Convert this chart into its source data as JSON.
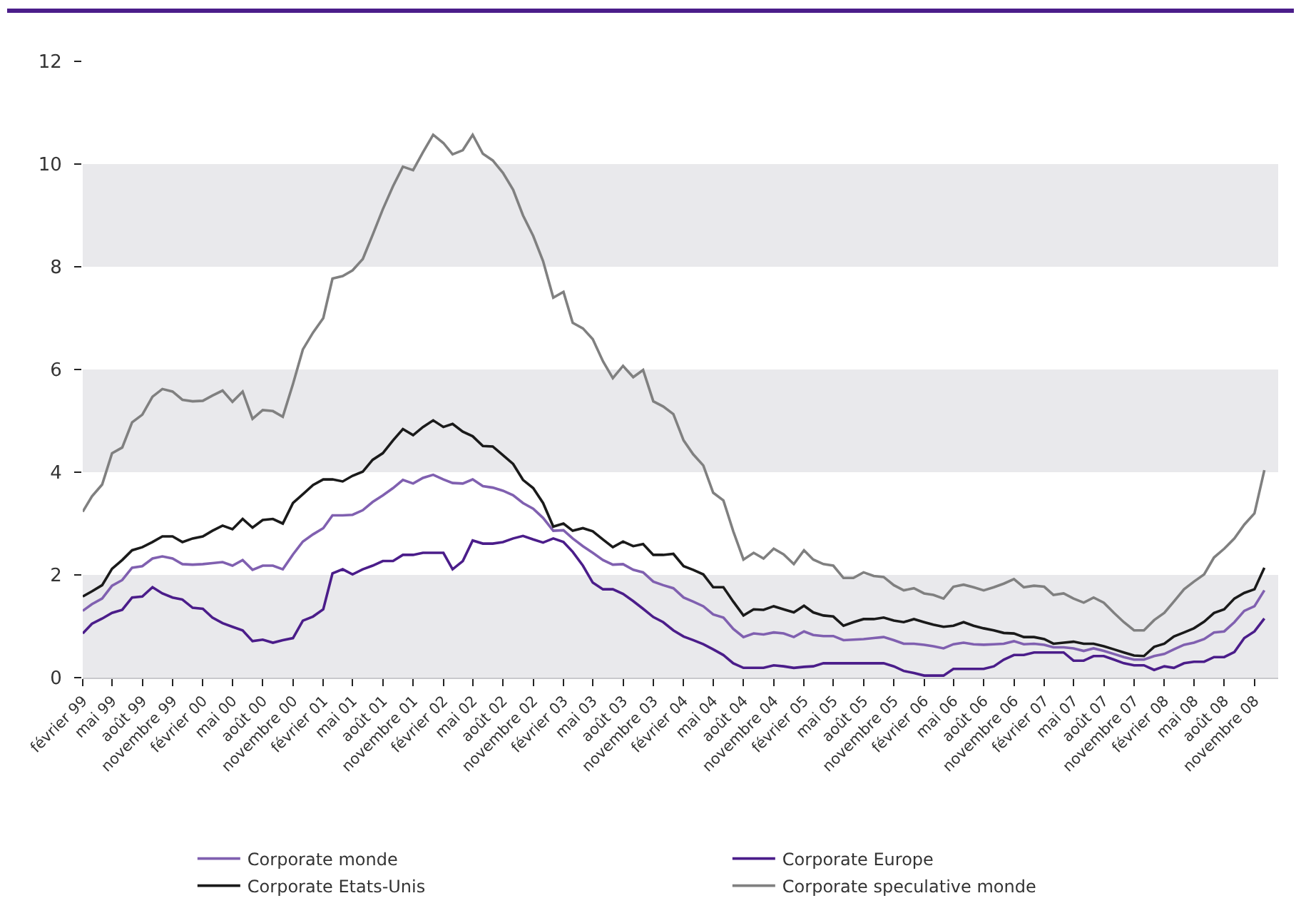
{
  "chart_data": {
    "type": "line",
    "legend": "bottom",
    "x": [
      "1999-02",
      "1999-03",
      "1999-04",
      "1999-05",
      "1999-06",
      "1999-07",
      "1999-08",
      "1999-09",
      "1999-10",
      "1999-11",
      "1999-12",
      "2000-01",
      "2000-02",
      "2000-03",
      "2000-04",
      "2000-05",
      "2000-06",
      "2000-07",
      "2000-08",
      "2000-09",
      "2000-10",
      "2000-11",
      "2000-12",
      "2001-01",
      "2001-02",
      "2001-03",
      "2001-04",
      "2001-05",
      "2001-06",
      "2001-07",
      "2001-08",
      "2001-09",
      "2001-10",
      "2001-11",
      "2001-12",
      "2002-01",
      "2002-02",
      "2002-03",
      "2002-04",
      "2002-05",
      "2002-06",
      "2002-07",
      "2002-08",
      "2002-09",
      "2002-10",
      "2002-11",
      "2002-12",
      "2003-01",
      "2003-02",
      "2003-03",
      "2003-04",
      "2003-05",
      "2003-06",
      "2003-07",
      "2003-08",
      "2003-09",
      "2003-10",
      "2003-11",
      "2003-12",
      "2004-01",
      "2004-02",
      "2004-03",
      "2004-04",
      "2004-05",
      "2004-06",
      "2004-07",
      "2004-08",
      "2004-09",
      "2004-10",
      "2004-11",
      "2004-12",
      "2005-01",
      "2005-02",
      "2005-03",
      "2005-04",
      "2005-05",
      "2005-06",
      "2005-07",
      "2005-08",
      "2005-09",
      "2005-10",
      "2005-11",
      "2005-12",
      "2006-01",
      "2006-02",
      "2006-03",
      "2006-04",
      "2006-05",
      "2006-06",
      "2006-07",
      "2006-08",
      "2006-09",
      "2006-10",
      "2006-11",
      "2006-12",
      "2007-01",
      "2007-02",
      "2007-03",
      "2007-04",
      "2007-05",
      "2007-06",
      "2007-07",
      "2007-08",
      "2007-09",
      "2007-10",
      "2007-11",
      "2007-12",
      "2008-01",
      "2008-02",
      "2008-03",
      "2008-04",
      "2008-05",
      "2008-06",
      "2008-07",
      "2008-08",
      "2008-09",
      "2008-10",
      "2008-11",
      "2008-12"
    ],
    "series": [
      {
        "name": "Corporate monde",
        "color": "#8060b0",
        "values": [
          1.3,
          1.43,
          1.54,
          1.79,
          1.9,
          2.14,
          2.17,
          2.32,
          2.36,
          2.32,
          2.21,
          2.2,
          2.21,
          2.23,
          2.25,
          2.18,
          2.29,
          2.1,
          2.18,
          2.18,
          2.11,
          2.4,
          2.65,
          2.79,
          2.91,
          3.16,
          3.16,
          3.17,
          3.26,
          3.42,
          3.55,
          3.69,
          3.85,
          3.78,
          3.89,
          3.95,
          3.86,
          3.79,
          3.78,
          3.86,
          3.73,
          3.7,
          3.64,
          3.55,
          3.4,
          3.29,
          3.11,
          2.86,
          2.87,
          2.71,
          2.56,
          2.43,
          2.29,
          2.2,
          2.21,
          2.1,
          2.05,
          1.87,
          1.8,
          1.74,
          1.56,
          1.48,
          1.39,
          1.23,
          1.17,
          0.95,
          0.79,
          0.86,
          0.84,
          0.88,
          0.86,
          0.79,
          0.9,
          0.83,
          0.81,
          0.81,
          0.73,
          0.74,
          0.75,
          0.77,
          0.79,
          0.73,
          0.66,
          0.66,
          0.64,
          0.61,
          0.57,
          0.65,
          0.68,
          0.65,
          0.64,
          0.65,
          0.66,
          0.71,
          0.65,
          0.66,
          0.64,
          0.59,
          0.59,
          0.57,
          0.52,
          0.57,
          0.52,
          0.46,
          0.4,
          0.35,
          0.35,
          0.42,
          0.46,
          0.55,
          0.64,
          0.68,
          0.75,
          0.88,
          0.9,
          1.08,
          1.3,
          1.39,
          1.7
        ]
      },
      {
        "name": "Corporate Europe",
        "color": "#4b1d8a",
        "values": [
          0.86,
          1.05,
          1.15,
          1.26,
          1.32,
          1.56,
          1.58,
          1.76,
          1.64,
          1.56,
          1.52,
          1.36,
          1.34,
          1.17,
          1.06,
          0.99,
          0.92,
          0.71,
          0.74,
          0.68,
          0.73,
          0.77,
          1.11,
          1.19,
          1.33,
          2.03,
          2.11,
          2.01,
          2.11,
          2.18,
          2.27,
          2.27,
          2.39,
          2.39,
          2.43,
          2.43,
          2.43,
          2.11,
          2.27,
          2.67,
          2.61,
          2.61,
          2.64,
          2.71,
          2.76,
          2.69,
          2.63,
          2.71,
          2.64,
          2.45,
          2.18,
          1.85,
          1.72,
          1.72,
          1.63,
          1.49,
          1.34,
          1.18,
          1.08,
          0.92,
          0.8,
          0.73,
          0.65,
          0.55,
          0.44,
          0.28,
          0.19,
          0.19,
          0.19,
          0.24,
          0.22,
          0.19,
          0.21,
          0.22,
          0.28,
          0.28,
          0.28,
          0.28,
          0.28,
          0.28,
          0.28,
          0.22,
          0.13,
          0.09,
          0.04,
          0.04,
          0.04,
          0.17,
          0.17,
          0.17,
          0.17,
          0.22,
          0.35,
          0.44,
          0.44,
          0.49,
          0.49,
          0.49,
          0.49,
          0.33,
          0.33,
          0.42,
          0.42,
          0.35,
          0.28,
          0.24,
          0.24,
          0.15,
          0.22,
          0.19,
          0.28,
          0.31,
          0.31,
          0.4,
          0.4,
          0.5,
          0.77,
          0.9,
          1.15
        ]
      },
      {
        "name": "Corporate Etats-Unis",
        "color": "#1a1a1a",
        "values": [
          1.58,
          1.68,
          1.8,
          2.12,
          2.29,
          2.48,
          2.54,
          2.64,
          2.75,
          2.75,
          2.64,
          2.71,
          2.75,
          2.86,
          2.96,
          2.89,
          3.09,
          2.92,
          3.07,
          3.09,
          3.0,
          3.4,
          3.57,
          3.75,
          3.86,
          3.86,
          3.82,
          3.93,
          4.01,
          4.24,
          4.37,
          4.62,
          4.84,
          4.72,
          4.88,
          5.01,
          4.88,
          4.94,
          4.79,
          4.7,
          4.51,
          4.5,
          4.33,
          4.16,
          3.85,
          3.69,
          3.4,
          2.94,
          3.0,
          2.86,
          2.91,
          2.85,
          2.69,
          2.54,
          2.65,
          2.56,
          2.6,
          2.39,
          2.39,
          2.41,
          2.17,
          2.1,
          2.01,
          1.76,
          1.76,
          1.48,
          1.21,
          1.33,
          1.32,
          1.39,
          1.33,
          1.27,
          1.4,
          1.27,
          1.21,
          1.19,
          1.01,
          1.08,
          1.14,
          1.14,
          1.17,
          1.11,
          1.08,
          1.14,
          1.08,
          1.03,
          0.99,
          1.01,
          1.08,
          1.01,
          0.96,
          0.92,
          0.87,
          0.86,
          0.79,
          0.79,
          0.75,
          0.66,
          0.68,
          0.7,
          0.66,
          0.66,
          0.61,
          0.55,
          0.49,
          0.43,
          0.42,
          0.6,
          0.66,
          0.8,
          0.88,
          0.96,
          1.09,
          1.26,
          1.33,
          1.54,
          1.65,
          1.72,
          2.14
        ]
      },
      {
        "name": "Corporate speculative monde",
        "color": "#808080",
        "values": [
          3.23,
          3.53,
          3.76,
          4.37,
          4.48,
          4.97,
          5.12,
          5.47,
          5.62,
          5.57,
          5.41,
          5.38,
          5.39,
          5.49,
          5.59,
          5.37,
          5.57,
          5.04,
          5.21,
          5.19,
          5.08,
          5.72,
          6.39,
          6.72,
          7.0,
          7.77,
          7.82,
          7.93,
          8.15,
          8.62,
          9.12,
          9.57,
          9.95,
          9.88,
          10.23,
          10.57,
          10.41,
          10.19,
          10.27,
          10.57,
          10.2,
          10.07,
          9.83,
          9.5,
          9.0,
          8.6,
          8.11,
          7.4,
          7.51,
          6.91,
          6.8,
          6.59,
          6.16,
          5.83,
          6.07,
          5.85,
          5.99,
          5.38,
          5.28,
          5.13,
          4.62,
          4.35,
          4.13,
          3.6,
          3.45,
          2.85,
          2.3,
          2.43,
          2.32,
          2.51,
          2.4,
          2.21,
          2.48,
          2.3,
          2.21,
          2.18,
          1.94,
          1.94,
          2.05,
          1.98,
          1.96,
          1.8,
          1.7,
          1.74,
          1.64,
          1.61,
          1.54,
          1.77,
          1.81,
          1.76,
          1.7,
          1.76,
          1.83,
          1.92,
          1.76,
          1.79,
          1.77,
          1.61,
          1.64,
          1.54,
          1.46,
          1.56,
          1.46,
          1.26,
          1.08,
          0.92,
          0.92,
          1.12,
          1.26,
          1.48,
          1.72,
          1.87,
          2.01,
          2.34,
          2.51,
          2.71,
          2.98,
          3.2,
          4.04
        ]
      }
    ],
    "xlim": [
      "1999-02",
      "2009-01-12"
    ],
    "xticks": [
      {
        "value": "1999-02",
        "label": "février 99"
      },
      {
        "value": "1999-05",
        "label": "mai 99"
      },
      {
        "value": "1999-08",
        "label": "août 99"
      },
      {
        "value": "1999-11",
        "label": "novembre 99"
      },
      {
        "value": "2000-02",
        "label": "février 00"
      },
      {
        "value": "2000-05",
        "label": "mai 00"
      },
      {
        "value": "2000-08",
        "label": "août 00"
      },
      {
        "value": "2000-11",
        "label": "novembre 00"
      },
      {
        "value": "2001-02",
        "label": "février 01"
      },
      {
        "value": "2001-05",
        "label": "mai 01"
      },
      {
        "value": "2001-08",
        "label": "août 01"
      },
      {
        "value": "2001-11",
        "label": "novembre 01"
      },
      {
        "value": "2002-02",
        "label": "février 02"
      },
      {
        "value": "2002-05",
        "label": "mai 02"
      },
      {
        "value": "2002-08",
        "label": "août 02"
      },
      {
        "value": "2002-11",
        "label": "novembre 02"
      },
      {
        "value": "2003-02",
        "label": "février 03"
      },
      {
        "value": "2003-05",
        "label": "mai 03"
      },
      {
        "value": "2003-08",
        "label": "août 03"
      },
      {
        "value": "2003-11",
        "label": "novembre 03"
      },
      {
        "value": "2004-02",
        "label": "février 04"
      },
      {
        "value": "2004-05",
        "label": "mai 04"
      },
      {
        "value": "2004-08",
        "label": "août 04"
      },
      {
        "value": "2004-11",
        "label": "novembre 04"
      },
      {
        "value": "2005-02",
        "label": "février 05"
      },
      {
        "value": "2005-05",
        "label": "mai 05"
      },
      {
        "value": "2005-08",
        "label": "août 05"
      },
      {
        "value": "2005-11",
        "label": "novembre 05"
      },
      {
        "value": "2006-02",
        "label": "février 06"
      },
      {
        "value": "2006-05",
        "label": "mai 06"
      },
      {
        "value": "2006-08",
        "label": "août 06"
      },
      {
        "value": "2006-11",
        "label": "novembre 06"
      },
      {
        "value": "2007-02",
        "label": "février 07"
      },
      {
        "value": "2007-05",
        "label": "mai 07"
      },
      {
        "value": "2007-08",
        "label": "août 07"
      },
      {
        "value": "2007-11",
        "label": "novembre 07"
      },
      {
        "value": "2008-02",
        "label": "février 08"
      },
      {
        "value": "2008-05",
        "label": "mai 08"
      },
      {
        "value": "2008-08",
        "label": "août 08"
      },
      {
        "value": "2008-11",
        "label": "novembre 08"
      }
    ],
    "ylim": [
      0,
      12
    ],
    "yticks": [
      0,
      2,
      4,
      6,
      8,
      10,
      12
    ],
    "bands": [
      {
        "axis": "y",
        "from": 0,
        "to": 2,
        "color": "#e9e9ec"
      },
      {
        "axis": "y",
        "from": 4,
        "to": 6,
        "color": "#e9e9ec"
      },
      {
        "axis": "y",
        "from": 8,
        "to": 10,
        "color": "#e9e9ec"
      }
    ]
  }
}
